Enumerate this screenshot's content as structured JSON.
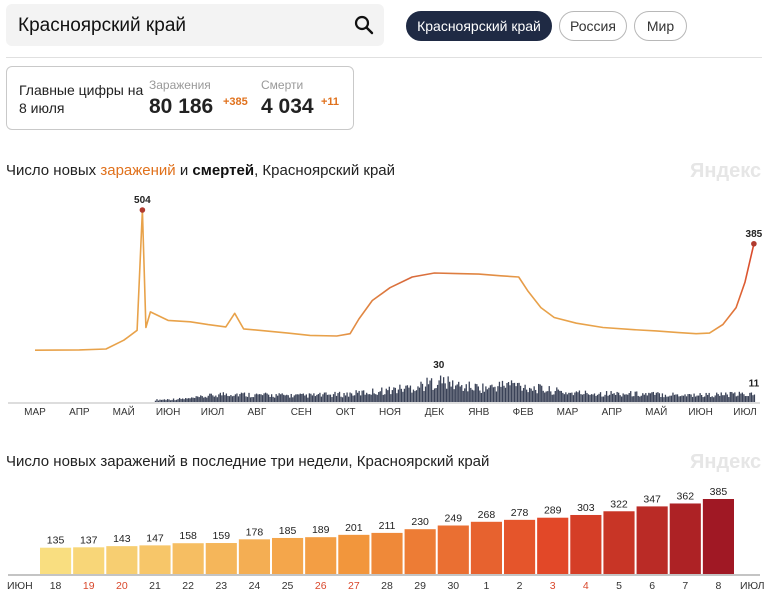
{
  "search": {
    "text": "Красноярский край"
  },
  "regions": {
    "items": [
      "Красноярский край",
      "Россия",
      "Мир"
    ],
    "active": 0
  },
  "summary": {
    "title": "Главные цифры на 8 июля",
    "infections": {
      "label": "Заражения",
      "value": "80 186",
      "delta": "+385"
    },
    "deaths": {
      "label": "Смерти",
      "value": "4 034",
      "delta": "+11"
    }
  },
  "chart1": {
    "title_parts": [
      "Число новых ",
      "заражений",
      " и ",
      "смертей",
      ", Красноярский край"
    ],
    "brand": "Яндекс"
  },
  "chart2": {
    "title": "Число новых заражений в последние три недели, Красноярский край",
    "brand": "Яндекс"
  },
  "colors": {
    "infections": "#e8a24a",
    "infections_tail": "#d9472b",
    "deaths": "#3a4257",
    "active_pill": "#1f2a44",
    "weekend": "#d9472b"
  },
  "chart_data": [
    {
      "type": "line",
      "x_ticks": [
        "МАР",
        "АПР",
        "МАЙ",
        "ИЮН",
        "ИЮЛ",
        "АВГ",
        "СЕН",
        "ОКТ",
        "НОЯ",
        "ДЕК",
        "ЯНВ",
        "ФЕВ",
        "МАР",
        "АПР",
        "МАЙ",
        "ИЮН",
        "ИЮЛ"
      ],
      "series": [
        {
          "name": "заражений",
          "points": [
            [
              0,
              10
            ],
            [
              1,
              11
            ],
            [
              1.6,
              14
            ],
            [
              2.0,
              45
            ],
            [
              2.3,
              80
            ],
            [
              2.42,
              504
            ],
            [
              2.5,
              90
            ],
            [
              2.6,
              145
            ],
            [
              3.0,
              115
            ],
            [
              3.5,
              110
            ],
            [
              3.9,
              100
            ],
            [
              4.3,
              92
            ],
            [
              4.5,
              140
            ],
            [
              4.7,
              85
            ],
            [
              5.2,
              78
            ],
            [
              5.7,
              70
            ],
            [
              6.2,
              62
            ],
            [
              6.8,
              60
            ],
            [
              7.1,
              68
            ],
            [
              7.3,
              120
            ],
            [
              7.6,
              185
            ],
            [
              8.0,
              230
            ],
            [
              8.5,
              268
            ],
            [
              9.0,
              282
            ],
            [
              9.5,
              280
            ],
            [
              10.0,
              278
            ],
            [
              10.5,
              272
            ],
            [
              10.9,
              268
            ],
            [
              11.1,
              220
            ],
            [
              11.4,
              160
            ],
            [
              11.7,
              125
            ],
            [
              12.2,
              105
            ],
            [
              12.8,
              90
            ],
            [
              13.5,
              82
            ],
            [
              14.0,
              78
            ],
            [
              14.5,
              72
            ],
            [
              14.9,
              68
            ],
            [
              15.2,
              70
            ],
            [
              15.5,
              100
            ],
            [
              15.8,
              160
            ],
            [
              16.0,
              250
            ],
            [
              16.2,
              385
            ]
          ],
          "peak_labels": [
            {
              "x": 2.42,
              "value": 504
            },
            {
              "x": 16.2,
              "value": 385
            }
          ]
        },
        {
          "name": "смертей",
          "bars_summary": "daily deaths, 0-30 per day",
          "peak_labels": [
            {
              "x": 9.1,
              "value": 30
            },
            {
              "x": 16.2,
              "value": 11
            }
          ],
          "envelope": [
            [
              2.7,
              3
            ],
            [
              3.5,
              5
            ],
            [
              4.3,
              12
            ],
            [
              5.0,
              10
            ],
            [
              6.0,
              9
            ],
            [
              7.0,
              11
            ],
            [
              8.0,
              17
            ],
            [
              8.6,
              22
            ],
            [
              9.1,
              30
            ],
            [
              9.6,
              22
            ],
            [
              10.2,
              20
            ],
            [
              10.7,
              26
            ],
            [
              11.2,
              20
            ],
            [
              12.0,
              13
            ],
            [
              13.0,
              12
            ],
            [
              14.0,
              11
            ],
            [
              15.0,
              10
            ],
            [
              16.2,
              11
            ]
          ]
        }
      ]
    },
    {
      "type": "bar",
      "categories": [
        "18",
        "19",
        "20",
        "21",
        "22",
        "23",
        "24",
        "25",
        "26",
        "27",
        "28",
        "29",
        "30",
        "1",
        "2",
        "3",
        "4",
        "5",
        "6",
        "7",
        "8"
      ],
      "values": [
        135,
        137,
        143,
        147,
        158,
        159,
        178,
        185,
        189,
        201,
        211,
        230,
        249,
        268,
        278,
        289,
        303,
        322,
        347,
        362,
        385
      ],
      "weekend_days": [
        "19",
        "20",
        "26",
        "27",
        "3",
        "4"
      ],
      "x_edge_labels": [
        "ИЮН",
        "ИЮЛ"
      ]
    }
  ]
}
